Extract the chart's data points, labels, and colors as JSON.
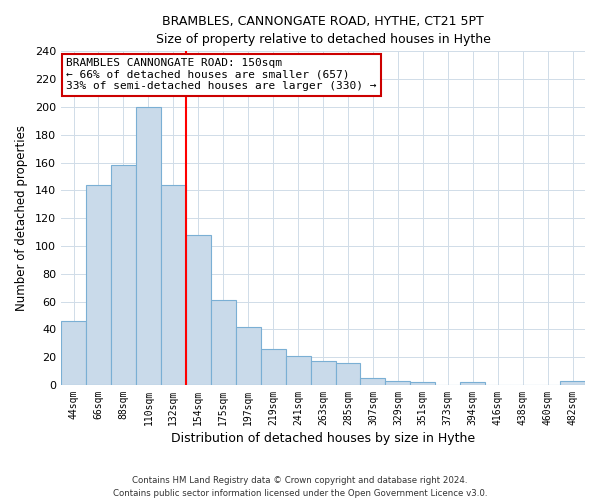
{
  "title": "BRAMBLES, CANNONGATE ROAD, HYTHE, CT21 5PT",
  "subtitle": "Size of property relative to detached houses in Hythe",
  "xlabel": "Distribution of detached houses by size in Hythe",
  "ylabel": "Number of detached properties",
  "bar_labels": [
    "44sqm",
    "66sqm",
    "88sqm",
    "110sqm",
    "132sqm",
    "154sqm",
    "175sqm",
    "197sqm",
    "219sqm",
    "241sqm",
    "263sqm",
    "285sqm",
    "307sqm",
    "329sqm",
    "351sqm",
    "373sqm",
    "394sqm",
    "416sqm",
    "438sqm",
    "460sqm",
    "482sqm"
  ],
  "bar_values": [
    46,
    144,
    158,
    200,
    144,
    108,
    61,
    42,
    26,
    21,
    17,
    16,
    5,
    3,
    2,
    0,
    2,
    0,
    0,
    0,
    3
  ],
  "bar_color": "#c9daea",
  "bar_edge_color": "#7aafd4",
  "vline_color": "red",
  "vline_index": 4.5,
  "annotation_text": "BRAMBLES CANNONGATE ROAD: 150sqm\n← 66% of detached houses are smaller (657)\n33% of semi-detached houses are larger (330) →",
  "annotation_box_color": "white",
  "annotation_box_edge": "#cc0000",
  "ylim": [
    0,
    240
  ],
  "yticks": [
    0,
    20,
    40,
    60,
    80,
    100,
    120,
    140,
    160,
    180,
    200,
    220,
    240
  ],
  "footer_line1": "Contains HM Land Registry data © Crown copyright and database right 2024.",
  "footer_line2": "Contains public sector information licensed under the Open Government Licence v3.0.",
  "bg_color": "#ffffff",
  "plot_bg_color": "#ffffff",
  "grid_color": "#d0dce8"
}
